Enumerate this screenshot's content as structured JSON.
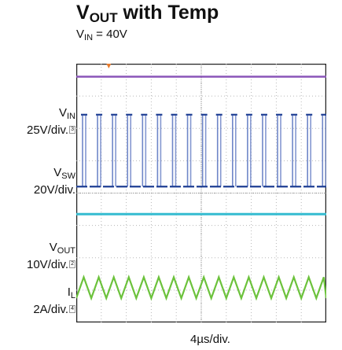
{
  "title": {
    "main": "V",
    "sub": "OUT",
    "rest": " with Temp"
  },
  "subtitle": {
    "main": "V",
    "sub": "IN",
    "rest": " = 40V"
  },
  "channels": [
    {
      "name_main": "V",
      "name_sub": "IN",
      "scale": "25V/div.",
      "ch": "3",
      "color": "#8a55b8"
    },
    {
      "name_main": "V",
      "name_sub": "SW",
      "scale": "20V/div.",
      "ch": "D",
      "color": "#1f3f94"
    },
    {
      "name_main": "V",
      "name_sub": "OUT",
      "scale": "10V/div.",
      "ch": "2",
      "color": "#35bcd0"
    },
    {
      "name_main": "I",
      "name_sub": "L",
      "scale": "2A/div.",
      "ch": "4",
      "color": "#6cc23c"
    }
  ],
  "xlabel": "4µs/div.",
  "chart_data": {
    "type": "line",
    "instrument": "oscilloscope",
    "grid": true,
    "divisions": {
      "x": 10,
      "y": 8
    },
    "time_per_div": "4µs/div.",
    "switching_period_div": 0.6,
    "series": [
      {
        "name": "VIN",
        "scale": "25V/div.",
        "baseline_div": 7.6,
        "shape": "flat dc level",
        "color": "#8a55b8"
      },
      {
        "name": "VSW",
        "scale": "20V/div.",
        "baseline_div": 4.2,
        "pulse_high_div": 6.4,
        "shape": "switching pulses",
        "color": "#6f86c8"
      },
      {
        "name": "VOUT",
        "scale": "10V/div.",
        "baseline_div": 3.35,
        "shape": "flat dc level",
        "color": "#35bcd0"
      },
      {
        "name": "IL",
        "scale": "2A/div.",
        "low_div": 0.75,
        "high_div": 1.4,
        "shape": "triangle ripple",
        "color": "#6cc23c"
      }
    ]
  }
}
